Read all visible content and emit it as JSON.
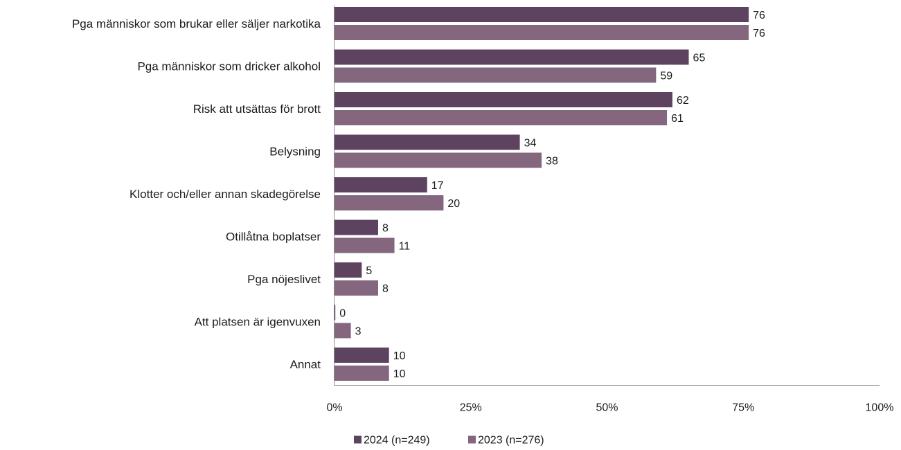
{
  "chart_data": {
    "type": "bar",
    "orientation": "horizontal",
    "categories": [
      "Pga människor som brukar eller säljer narkotika",
      "Pga människor som dricker alkohol",
      "Risk att utsättas för brott",
      "Belysning",
      "Klotter och/eller annan skadegörelse",
      "Otillåtna boplatser",
      "Pga nöjeslivet",
      "Att platsen är igenvuxen",
      "Annat"
    ],
    "series": [
      {
        "name": "2024 (n=249)",
        "color": "#5e4360",
        "values": [
          76,
          65,
          62,
          34,
          17,
          8,
          5,
          0,
          10
        ]
      },
      {
        "name": "2023 (n=276)",
        "color": "#84677f",
        "values": [
          76,
          59,
          61,
          38,
          20,
          11,
          8,
          3,
          10
        ]
      }
    ],
    "xlim": [
      0,
      100
    ],
    "xticks": [
      0,
      25,
      50,
      75,
      100
    ],
    "xtick_labels": [
      "0%",
      "25%",
      "50%",
      "75%",
      "100%"
    ],
    "grid": false,
    "legend_position": "bottom-center",
    "title": "",
    "xlabel": "",
    "ylabel": ""
  }
}
